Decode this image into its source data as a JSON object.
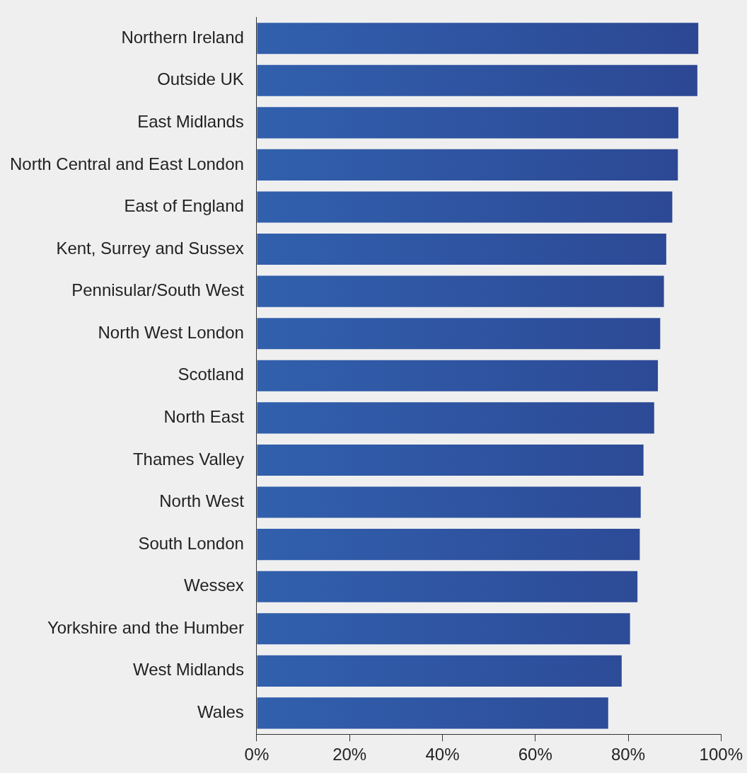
{
  "chart_data": {
    "type": "bar",
    "orientation": "horizontal",
    "categories": [
      "Northern Ireland",
      "Outside UK",
      "East Midlands",
      "North Central and East London",
      "East of England",
      "Kent, Surrey and Sussex",
      "Pennisular/South West",
      "North West London",
      "Scotland",
      "North East",
      "Thames Valley",
      "North West",
      "South London",
      "Wessex",
      "Yorkshire and the Humber",
      "West Midlands",
      "Wales"
    ],
    "values": [
      95.1,
      94.9,
      90.8,
      90.7,
      89.5,
      88.2,
      87.7,
      86.9,
      86.4,
      85.6,
      83.3,
      82.7,
      82.5,
      82.0,
      80.4,
      78.6,
      75.7
    ],
    "color": "#2c4692",
    "xlim": [
      0,
      100
    ],
    "xticks": [
      {
        "value": 0,
        "label": "0%"
      },
      {
        "value": 20,
        "label": "20%"
      },
      {
        "value": 40,
        "label": "40%"
      },
      {
        "value": 60,
        "label": "60%"
      },
      {
        "value": 80,
        "label": "80%"
      },
      {
        "value": 100,
        "label": "100%"
      }
    ],
    "grid": false,
    "legend": false
  }
}
